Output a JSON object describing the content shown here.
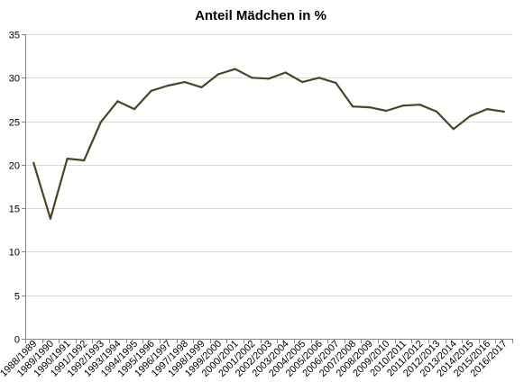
{
  "chart_data": {
    "type": "line",
    "title": "Anteil Mädchen in %",
    "xlabel": "",
    "ylabel": "",
    "ylim": [
      0,
      35
    ],
    "yticks": [
      0,
      5,
      10,
      15,
      20,
      25,
      30,
      35
    ],
    "grid": true,
    "legend": "none",
    "colors": {
      "line": "#4a4526",
      "grid": "#d9d9d9",
      "axis": "#868686"
    },
    "categories": [
      "1988/1989",
      "1989/1990",
      "1990/1991",
      "1991/1992",
      "1992/1993",
      "1993/1994",
      "1994/1995",
      "1995/1996",
      "1996/1997",
      "1997/1998",
      "1998/1999",
      "1999/2000",
      "2000/2001",
      "2001/2002",
      "2002/2003",
      "2003/2004",
      "2004/2005",
      "2005/2006",
      "2006/2007",
      "2007/2008",
      "2008/2009",
      "2009/2010",
      "2010/2011",
      "2011/2012",
      "2012/2013",
      "2013/2014",
      "2014/2015",
      "2015/2016",
      "2016/2017"
    ],
    "series": [
      {
        "values": [
          20.2,
          13.8,
          20.7,
          20.5,
          24.9,
          27.3,
          26.4,
          28.5,
          29.1,
          29.5,
          28.9,
          30.4,
          31.0,
          30.0,
          29.9,
          30.6,
          29.5,
          30.0,
          29.4,
          26.7,
          26.6,
          26.2,
          26.8,
          26.9,
          26.1,
          24.1,
          25.6,
          26.4,
          26.1
        ]
      }
    ]
  }
}
